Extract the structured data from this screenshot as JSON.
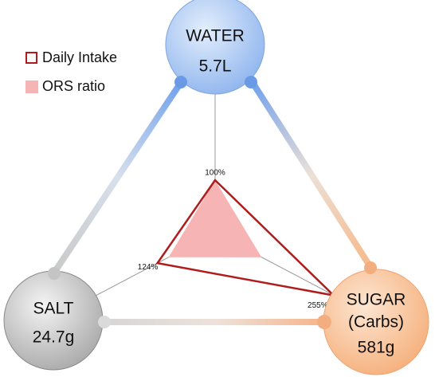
{
  "nodes": [
    {
      "label": [
        "WATER"
      ],
      "value": "5.7L"
    },
    {
      "label": [
        "SALT"
      ],
      "value": "24.7g"
    },
    {
      "label": [
        "SUGAR",
        "(Carbs)"
      ],
      "value": "581g"
    }
  ],
  "radar": {
    "series": [
      {
        "name": "Daily Intake",
        "color": "#b01c1c",
        "values": [
          100,
          124,
          255
        ],
        "value_labels": [
          "100%",
          "124%",
          "255%"
        ]
      },
      {
        "name": "ORS ratio",
        "color": "#f7b4b4",
        "values": [
          100,
          100,
          100
        ]
      }
    ]
  }
}
